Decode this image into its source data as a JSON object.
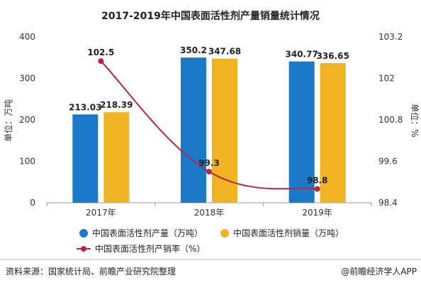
{
  "chart_data": {
    "type": "bar",
    "title": "2017-2019年中国表面活性剂产量销量统计情况",
    "categories": [
      "2017年",
      "2018年",
      "2019年"
    ],
    "ylabel_left": "单位：万吨",
    "ylabel_right": "单位：%",
    "ylim_left": [
      0,
      400
    ],
    "yticks_left": [
      0,
      100,
      200,
      300,
      400
    ],
    "ylim_right": [
      98.4,
      103.2
    ],
    "yticks_right": [
      98.4,
      99.6,
      100.8,
      102,
      103.2
    ],
    "grid": false,
    "legend_position": "bottom",
    "series": [
      {
        "name": "中国表面活性剂产量（万吨）",
        "type": "bar",
        "axis": "left",
        "color": "#1a7ac9",
        "values": [
          213.03,
          350.2,
          340.77
        ],
        "labels": [
          "213.03",
          "350.2",
          "340.77"
        ]
      },
      {
        "name": "中国表面活性剂销量（万吨）",
        "type": "bar",
        "axis": "left",
        "color": "#f0b323",
        "values": [
          218.39,
          347.68,
          336.65
        ],
        "labels": [
          "218.39",
          "347.68",
          "336.65"
        ]
      },
      {
        "name": "中国表面活性剂产销率（%）",
        "type": "line",
        "axis": "right",
        "color": "#b3283a",
        "values": [
          102.5,
          99.3,
          98.8
        ],
        "labels": [
          "102.5",
          "99.3",
          "98.8"
        ]
      }
    ]
  },
  "footer": {
    "source": "资料来源：国家统计局、前瞻产业研究院整理",
    "brand": "@前瞻经济学人APP"
  }
}
